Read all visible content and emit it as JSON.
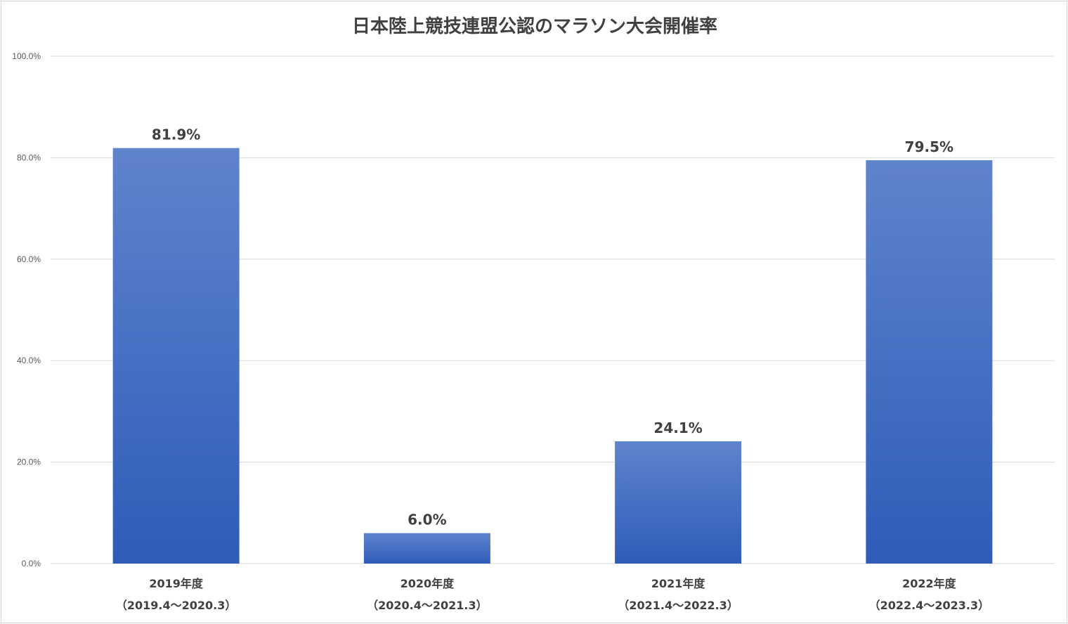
{
  "chart_data": {
    "type": "bar",
    "title": "日本陸上競技連盟公認のマラソン大会開催率",
    "categories": [
      [
        "2019年度",
        "（2019.4〜2020.3）"
      ],
      [
        "2020年度",
        "（2020.4〜2021.3）"
      ],
      [
        "2021年度",
        "（2021.4〜2022.3）"
      ],
      [
        "2022年度",
        "（2022.4〜2023.3）"
      ]
    ],
    "values": [
      81.9,
      6.0,
      24.1,
      79.5
    ],
    "data_labels": [
      "81.9%",
      "6.0%",
      "24.1%",
      "79.5%"
    ],
    "ylim": [
      0,
      100
    ],
    "yticks": [
      0,
      20,
      40,
      60,
      80,
      100
    ],
    "ytick_labels": [
      "0.0%",
      "20.0%",
      "40.0%",
      "60.0%",
      "80.0%",
      "100.0%"
    ],
    "grid": true,
    "colors": {
      "bar_top": "#5f84cc",
      "bar_bottom": "#2f5cb9",
      "grid": "#d9d9d9",
      "text": "#404040"
    }
  }
}
